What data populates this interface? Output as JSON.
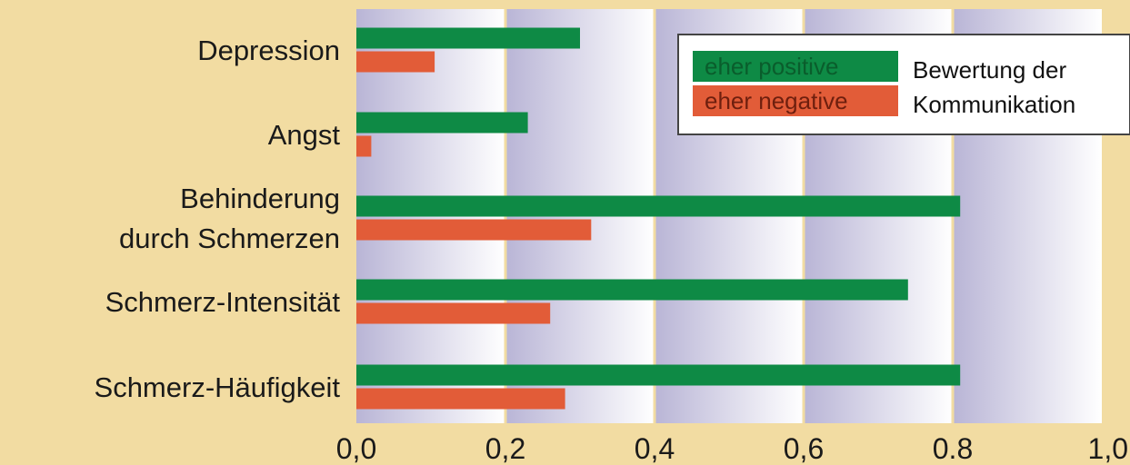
{
  "chart_data": {
    "type": "bar",
    "orientation": "horizontal",
    "categories": [
      [
        "Depression"
      ],
      [
        "Angst"
      ],
      [
        "Behinderung",
        "durch Schmerzen"
      ],
      [
        "Schmerz-Intensität"
      ],
      [
        "Schmerz-Häufigkeit"
      ]
    ],
    "series": [
      {
        "name": "eher positive",
        "color": "#0e8a45",
        "values": [
          0.3,
          0.23,
          0.81,
          0.74,
          0.81
        ]
      },
      {
        "name": "eher negative",
        "color": "#e25c38",
        "values": [
          0.105,
          0.02,
          0.315,
          0.26,
          0.28
        ]
      }
    ],
    "xlim": [
      0,
      1
    ],
    "xticks": [
      0,
      0.2,
      0.4,
      0.6,
      0.8,
      1.0
    ],
    "xtick_labels": [
      "0,0",
      "0,2",
      "0,4",
      "0,6",
      "0.8",
      "1,0"
    ],
    "legend_title": [
      "Bewertung der",
      "Kommunikation"
    ],
    "legend_position": "top-right",
    "background_colors": {
      "page": "#f2dca2",
      "band": "#b9b5d6"
    },
    "title": "",
    "xlabel": "",
    "ylabel": ""
  }
}
